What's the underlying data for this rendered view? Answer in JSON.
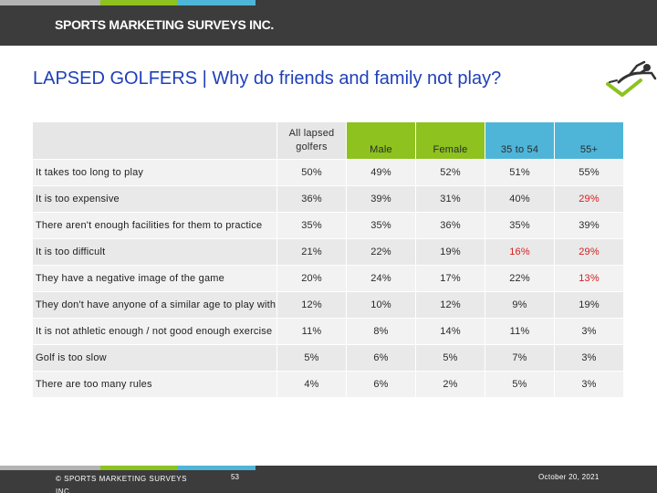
{
  "header": {
    "brand": "SPORTS MARKETING SURVEYS INC.",
    "colors": {
      "background": "#3c3c3c",
      "green": "#8dc21f",
      "blue": "#4fb5d8",
      "grey": "#b3b3b3"
    }
  },
  "title": "LAPSED GOLFERS | Why do friends and family not play?",
  "icon": "golfer-icon",
  "table": {
    "columns": [
      "All lapsed golfers",
      "Male",
      "Female",
      "35 to 54",
      "55+"
    ],
    "rows": [
      {
        "label": "It takes too long to play",
        "values": [
          "50%",
          "49%",
          "52%",
          "51%",
          "55%"
        ],
        "highlight": []
      },
      {
        "label": "It is too expensive",
        "values": [
          "36%",
          "39%",
          "31%",
          "40%",
          "29%"
        ],
        "highlight": [
          4
        ]
      },
      {
        "label": "There aren't enough facilities for them to practice",
        "values": [
          "35%",
          "35%",
          "36%",
          "35%",
          "39%"
        ],
        "highlight": []
      },
      {
        "label": "It is too difficult",
        "values": [
          "21%",
          "22%",
          "19%",
          "16%",
          "29%"
        ],
        "highlight": [
          3,
          4
        ]
      },
      {
        "label": "They have a negative image of the game",
        "values": [
          "20%",
          "24%",
          "17%",
          "22%",
          "13%"
        ],
        "highlight": [
          4
        ]
      },
      {
        "label": "They don't have anyone of a similar age to play with",
        "values": [
          "12%",
          "10%",
          "12%",
          "9%",
          "19%"
        ],
        "highlight": []
      },
      {
        "label": "It is not athletic enough / not good enough exercise",
        "values": [
          "11%",
          "8%",
          "14%",
          "11%",
          "3%"
        ],
        "highlight": []
      },
      {
        "label": "Golf is too slow",
        "values": [
          "5%",
          "6%",
          "5%",
          "7%",
          "3%"
        ],
        "highlight": []
      },
      {
        "label": "There are too many rules",
        "values": [
          "4%",
          "6%",
          "2%",
          "5%",
          "3%"
        ],
        "highlight": []
      }
    ],
    "highlight_color": "#d42020"
  },
  "footer": {
    "copyright": "© SPORTS MARKETING SURVEYS INC.",
    "page_number": "53",
    "date": "October 20, 2021"
  }
}
